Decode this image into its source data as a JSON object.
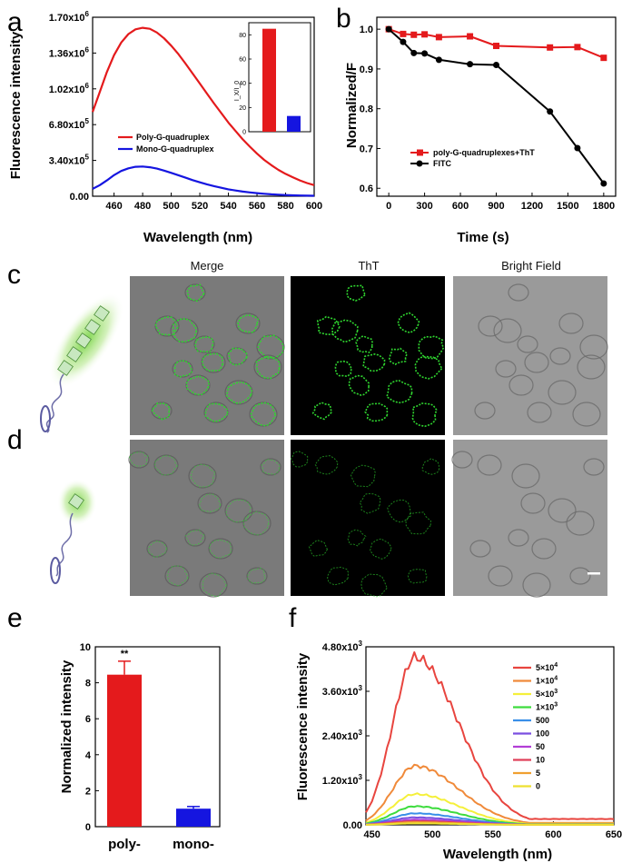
{
  "panel_labels": {
    "a": "a",
    "b": "b",
    "c": "c",
    "d": "d",
    "e": "e",
    "f": "f"
  },
  "colors": {
    "red": "#e41a1c",
    "blue": "#1515e0",
    "black": "#000000",
    "cell_green": "#2fd52f"
  },
  "micro": {
    "col_headers": [
      "Merge",
      "ThT",
      "Bright Field"
    ]
  },
  "chart_data": [
    {
      "id": "a",
      "type": "line",
      "xlabel": "Wavelength (nm)",
      "ylabel": "Fluorescence intensity",
      "xlim": [
        445,
        600
      ],
      "ylim": [
        0,
        1700000
      ],
      "x_ticks": [
        "460",
        "480",
        "500",
        "520",
        "540",
        "560",
        "580",
        "600"
      ],
      "y_ticks": [
        "0.00",
        "3.40x10^5",
        "6.80x10^5",
        "1.02x10^6",
        "1.36x10^6",
        "1.70x10^6"
      ],
      "x": [
        445,
        450,
        455,
        460,
        465,
        470,
        475,
        480,
        485,
        490,
        495,
        500,
        505,
        510,
        515,
        520,
        525,
        530,
        535,
        540,
        545,
        550,
        555,
        560,
        565,
        570,
        575,
        580,
        585,
        590,
        595,
        600
      ],
      "series": [
        {
          "name": "Poly-G-quadruplex",
          "color": "#e41a1c",
          "values": [
            800000,
            990000,
            1180000,
            1340000,
            1460000,
            1540000,
            1585000,
            1600000,
            1590000,
            1555000,
            1500000,
            1430000,
            1350000,
            1260000,
            1165000,
            1070000,
            975000,
            880000,
            790000,
            700000,
            620000,
            540000,
            470000,
            405000,
            345000,
            295000,
            250000,
            212000,
            180000,
            150000,
            125000,
            105000
          ]
        },
        {
          "name": "Mono-G-quadruplex",
          "color": "#1515e0",
          "values": [
            70000,
            105000,
            150000,
            200000,
            240000,
            265000,
            280000,
            282000,
            275000,
            262000,
            243000,
            222000,
            199000,
            176000,
            153000,
            132000,
            113000,
            96000,
            80000,
            66000,
            54000,
            44000,
            36000,
            29000,
            23000,
            18000,
            14500,
            11500,
            9000,
            7000,
            5500,
            4500
          ]
        }
      ],
      "inset": {
        "type": "bar",
        "ylabel": "I_X/I_0",
        "ylim": [
          0,
          90
        ],
        "y_ticks": [
          "0",
          "20",
          "40",
          "60",
          "80"
        ],
        "values": [
          85,
          13
        ],
        "colors": [
          "#e41a1c",
          "#1515e0"
        ]
      }
    },
    {
      "id": "b",
      "type": "line",
      "xlabel": "Time (s)",
      "ylabel": "Normalized/F",
      "xlim": [
        -100,
        1900
      ],
      "ylim": [
        0.58,
        1.03
      ],
      "x_ticks": [
        "0",
        "300",
        "600",
        "900",
        "1200",
        "1500",
        "1800"
      ],
      "y_ticks": [
        "0.6",
        "0.7",
        "0.8",
        "0.9",
        "1.0"
      ],
      "series": [
        {
          "name": "poly-G-quadruplexes+ThT",
          "color": "#e41a1c",
          "marker": "square",
          "x": [
            0,
            120,
            210,
            300,
            420,
            680,
            900,
            1350,
            1580,
            1800
          ],
          "values": [
            1.0,
            0.988,
            0.986,
            0.987,
            0.98,
            0.982,
            0.958,
            0.954,
            0.955,
            0.928
          ]
        },
        {
          "name": "FITC",
          "color": "#000000",
          "marker": "circle",
          "x": [
            0,
            120,
            210,
            300,
            420,
            680,
            900,
            1350,
            1580,
            1800
          ],
          "values": [
            1.0,
            0.968,
            0.94,
            0.939,
            0.923,
            0.912,
            0.91,
            0.793,
            0.701,
            0.612
          ]
        }
      ]
    },
    {
      "id": "e",
      "type": "bar",
      "ylabel": "Normalized intensity",
      "categories": [
        "poly-",
        "mono-"
      ],
      "values": [
        8.45,
        1.0
      ],
      "errors": [
        0.75,
        0.12
      ],
      "colors": [
        "#e41a1c",
        "#1515e0"
      ],
      "ylim": [
        0,
        10
      ],
      "y_ticks": [
        "0",
        "2",
        "4",
        "6",
        "8",
        "10"
      ],
      "annotation": "**"
    },
    {
      "id": "f",
      "type": "line",
      "xlabel": "Wavelength (nm)",
      "ylabel": "Fluorescence intensity",
      "xlim": [
        445,
        650
      ],
      "ylim": [
        0,
        4800
      ],
      "x_ticks": [
        "450",
        "500",
        "550",
        "600",
        "650"
      ],
      "y_ticks": [
        "0.00",
        "1.20x10^3",
        "2.40x10^3",
        "3.60x10^3",
        "4.80x10^3"
      ],
      "series": [
        {
          "name": "5×10^4",
          "color": "#e8453f",
          "peak": 4520
        },
        {
          "name": "1×10^4",
          "color": "#f08a3a",
          "peak": 1590
        },
        {
          "name": "5×10^3",
          "color": "#f5f03a",
          "peak": 830
        },
        {
          "name": "1×10^3",
          "color": "#3ddc3d",
          "peak": 500
        },
        {
          "name": "500",
          "color": "#3a8fe8",
          "peak": 310
        },
        {
          "name": "100",
          "color": "#7a4fe0",
          "peak": 200
        },
        {
          "name": "50",
          "color": "#b23fd6",
          "peak": 140
        },
        {
          "name": "10",
          "color": "#e0405a",
          "peak": 100
        },
        {
          "name": "5",
          "color": "#f0a030",
          "peak": 70
        },
        {
          "name": "0",
          "color": "#eee030",
          "peak": 40
        }
      ]
    }
  ]
}
